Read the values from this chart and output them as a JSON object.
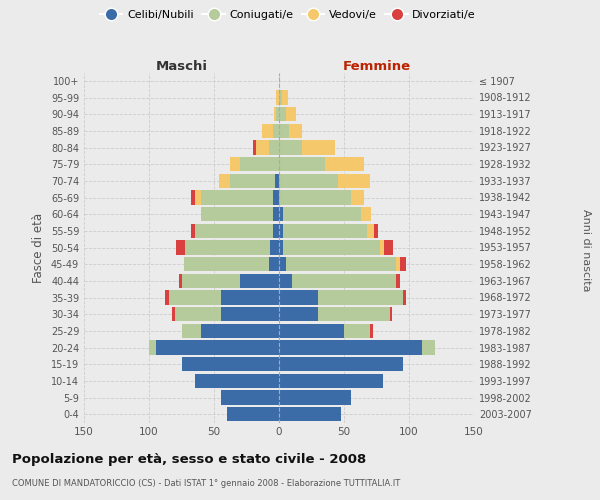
{
  "age_groups": [
    "0-4",
    "5-9",
    "10-14",
    "15-19",
    "20-24",
    "25-29",
    "30-34",
    "35-39",
    "40-44",
    "45-49",
    "50-54",
    "55-59",
    "60-64",
    "65-69",
    "70-74",
    "75-79",
    "80-84",
    "85-89",
    "90-94",
    "95-99",
    "100+"
  ],
  "birth_years": [
    "2003-2007",
    "1998-2002",
    "1993-1997",
    "1988-1992",
    "1983-1987",
    "1978-1982",
    "1973-1977",
    "1968-1972",
    "1963-1967",
    "1958-1962",
    "1953-1957",
    "1948-1952",
    "1943-1947",
    "1938-1942",
    "1933-1937",
    "1928-1932",
    "1923-1927",
    "1918-1922",
    "1913-1917",
    "1908-1912",
    "≤ 1907"
  ],
  "male": {
    "celibi": [
      40,
      45,
      65,
      75,
      95,
      60,
      45,
      45,
      30,
      8,
      7,
      5,
      5,
      5,
      3,
      0,
      0,
      0,
      0,
      0,
      0
    ],
    "coniugati": [
      0,
      0,
      0,
      0,
      5,
      15,
      35,
      40,
      45,
      65,
      65,
      60,
      55,
      55,
      35,
      30,
      8,
      5,
      2,
      0,
      0
    ],
    "vedovi": [
      0,
      0,
      0,
      0,
      0,
      0,
      0,
      0,
      0,
      0,
      0,
      0,
      0,
      5,
      8,
      8,
      10,
      8,
      2,
      2,
      0
    ],
    "divorziati": [
      0,
      0,
      0,
      0,
      0,
      0,
      2,
      3,
      2,
      0,
      7,
      3,
      0,
      3,
      0,
      0,
      2,
      0,
      0,
      0,
      0
    ]
  },
  "female": {
    "nubili": [
      48,
      55,
      80,
      95,
      110,
      50,
      30,
      30,
      10,
      5,
      3,
      3,
      3,
      0,
      0,
      0,
      0,
      0,
      0,
      0,
      0
    ],
    "coniugate": [
      0,
      0,
      0,
      0,
      10,
      20,
      55,
      65,
      80,
      85,
      75,
      65,
      60,
      55,
      45,
      35,
      18,
      8,
      5,
      2,
      0
    ],
    "vedove": [
      0,
      0,
      0,
      0,
      0,
      0,
      0,
      0,
      0,
      3,
      3,
      5,
      8,
      10,
      25,
      30,
      25,
      10,
      8,
      5,
      0
    ],
    "divorziate": [
      0,
      0,
      0,
      0,
      0,
      2,
      2,
      3,
      3,
      5,
      7,
      3,
      0,
      0,
      0,
      0,
      0,
      0,
      0,
      0,
      0
    ]
  },
  "colors": {
    "celibi": "#3B6CA8",
    "coniugati": "#B5CB9B",
    "vedovi": "#F5C96B",
    "divorziati": "#D94040"
  },
  "xlim": 150,
  "title": "Popolazione per età, sesso e stato civile - 2008",
  "subtitle": "COMUNE DI MANDATORICCIO (CS) - Dati ISTAT 1° gennaio 2008 - Elaborazione TUTTITALIA.IT",
  "xlabel_left": "Maschi",
  "xlabel_right": "Femmine",
  "ylabel_left": "Fasce di età",
  "ylabel_right": "Anni di nascita",
  "legend_labels": [
    "Celibi/Nubili",
    "Coniugati/e",
    "Vedovi/e",
    "Divorziati/e"
  ],
  "bg_color": "#ebebeb"
}
